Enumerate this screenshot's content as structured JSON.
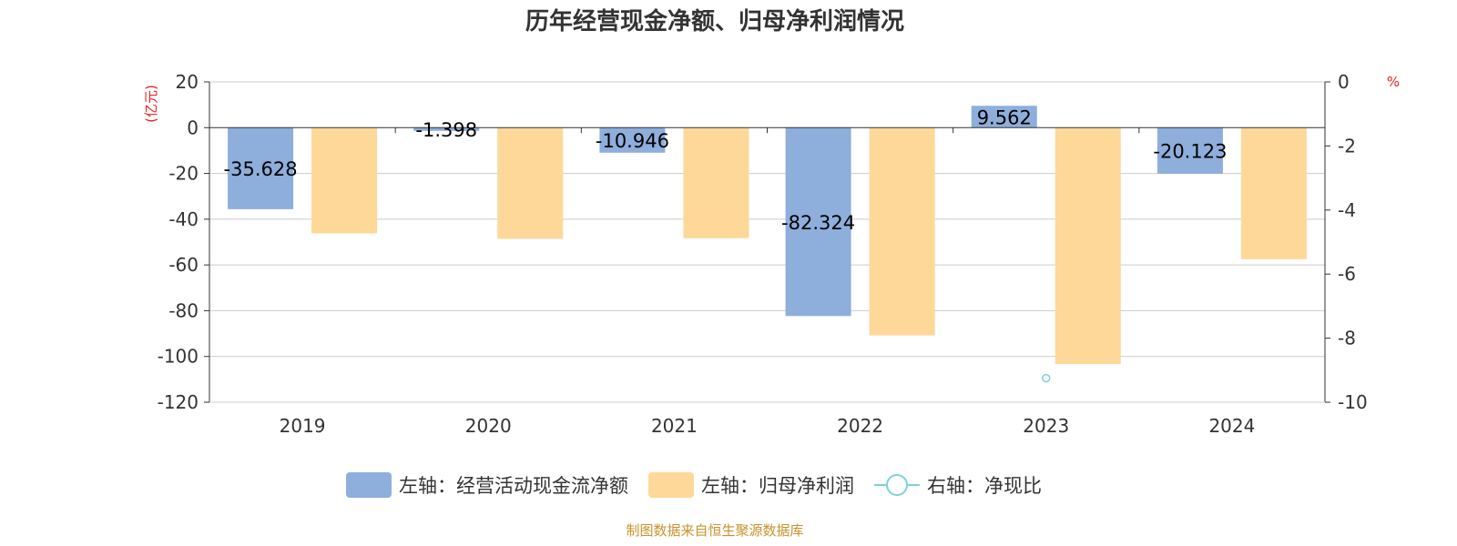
{
  "title": "历年经营现金净额、归母净利润情况",
  "source": "制图数据来自恒生聚源数据库",
  "units": {
    "left": "(亿元)",
    "right": "%"
  },
  "colors": {
    "cash": "#8eaedc",
    "profit": "#fed898",
    "ratio": "#7fcfdc",
    "unit": "#e8201f",
    "source": "#c8922c"
  },
  "legend": [
    {
      "label": "左轴：经营活动现金流净额",
      "type": "bar",
      "color": "#8eaedc"
    },
    {
      "label": "左轴：归母净利润",
      "type": "bar",
      "color": "#fed898"
    },
    {
      "label": "右轴：净现比",
      "type": "line",
      "color": "#7fcfdc"
    }
  ],
  "chart_data": {
    "type": "bar",
    "categories": [
      "2019",
      "2020",
      "2021",
      "2022",
      "2023",
      "2024"
    ],
    "left_axis": {
      "min": -120,
      "max": 20,
      "ticks": [
        20,
        0,
        -20,
        -40,
        -60,
        -80,
        -100,
        -120
      ],
      "tick_labels": [
        "20",
        "0",
        "-20",
        "-40",
        "-60",
        "-80",
        "-100",
        "-120"
      ]
    },
    "right_axis": {
      "min": -10,
      "max": 0,
      "ticks": [
        0,
        -2,
        -4,
        -6,
        -8,
        -10
      ],
      "tick_labels": [
        "0",
        "-2",
        "-4",
        "-6",
        "-8",
        "-10"
      ]
    },
    "series": [
      {
        "name": "左轴：经营活动现金流净额",
        "axis": "left",
        "type": "bar",
        "values": [
          -35.628,
          -1.398,
          -10.946,
          -82.324,
          9.562,
          -20.123
        ],
        "labels": [
          "-35.628",
          "-1.398",
          "-10.946",
          "-82.324",
          "9.562",
          "-20.123"
        ]
      },
      {
        "name": "左轴：归母净利润",
        "axis": "left",
        "type": "bar",
        "values": [
          -46.2,
          -48.6,
          -48.3,
          -90.8,
          -103.3,
          -57.5
        ]
      },
      {
        "name": "右轴：净现比",
        "axis": "right",
        "type": "line",
        "values": [
          null,
          null,
          null,
          null,
          -9.25,
          null
        ]
      }
    ],
    "grid": true,
    "legend_position": "bottom"
  }
}
